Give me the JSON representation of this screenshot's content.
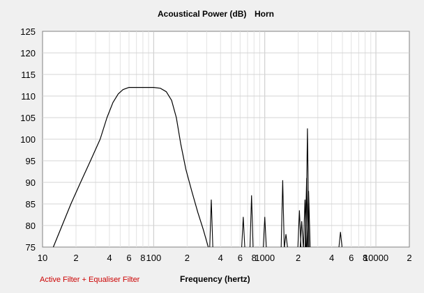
{
  "chart_data": {
    "type": "line",
    "title": "Acoustical Power (dB)",
    "subtitle": "Horn",
    "xlabel": "Frequency (hertz)",
    "ylabel": "",
    "x_scale": "log",
    "xlim": [
      10,
      20000
    ],
    "ylim": [
      75,
      125
    ],
    "grid": true,
    "y_ticks": [
      75,
      80,
      85,
      90,
      95,
      100,
      105,
      110,
      115,
      120,
      125
    ],
    "x_tick_labels": [
      {
        "value": 10,
        "label": "10"
      },
      {
        "value": 20,
        "label": "2"
      },
      {
        "value": 40,
        "label": "4"
      },
      {
        "value": 60,
        "label": "6"
      },
      {
        "value": 80,
        "label": "8"
      },
      {
        "value": 100,
        "label": "100"
      },
      {
        "value": 200,
        "label": "2"
      },
      {
        "value": 400,
        "label": "4"
      },
      {
        "value": 600,
        "label": "6"
      },
      {
        "value": 800,
        "label": "8"
      },
      {
        "value": 1000,
        "label": "1000"
      },
      {
        "value": 2000,
        "label": "2"
      },
      {
        "value": 4000,
        "label": "4"
      },
      {
        "value": 6000,
        "label": "6"
      },
      {
        "value": 8000,
        "label": "8"
      },
      {
        "value": 10000,
        "label": "10000"
      },
      {
        "value": 20000,
        "label": "2"
      }
    ],
    "series": [
      {
        "color": "#000000",
        "main_curve": [
          [
            12.5,
            75
          ],
          [
            15,
            80
          ],
          [
            18,
            85
          ],
          [
            22,
            90
          ],
          [
            27,
            95
          ],
          [
            33,
            100
          ],
          [
            38,
            105
          ],
          [
            43,
            108.5
          ],
          [
            48,
            110.5
          ],
          [
            53,
            111.5
          ],
          [
            60,
            112
          ],
          [
            80,
            112
          ],
          [
            100,
            112
          ],
          [
            115,
            111.8
          ],
          [
            130,
            111
          ],
          [
            145,
            109
          ],
          [
            160,
            105
          ],
          [
            175,
            99
          ],
          [
            195,
            93
          ],
          [
            220,
            88
          ],
          [
            250,
            83
          ],
          [
            280,
            79
          ],
          [
            310,
            75
          ]
        ],
        "peaks": [
          {
            "f": 330,
            "db": 86
          },
          {
            "f": 640,
            "db": 82
          },
          {
            "f": 760,
            "db": 87
          },
          {
            "f": 1000,
            "db": 82
          },
          {
            "f": 1450,
            "db": 90.5
          },
          {
            "f": 1550,
            "db": 78
          },
          {
            "f": 2050,
            "db": 83.5
          },
          {
            "f": 2150,
            "db": 81
          },
          {
            "f": 2300,
            "db": 86
          },
          {
            "f": 2380,
            "db": 91
          },
          {
            "f": 2420,
            "db": 102.5
          },
          {
            "f": 2480,
            "db": 88
          },
          {
            "f": 4800,
            "db": 78.5
          }
        ]
      }
    ]
  },
  "footer": {
    "filter_label": "Active Filter + Equaliser Filter",
    "filter_color": "#cc0000"
  }
}
